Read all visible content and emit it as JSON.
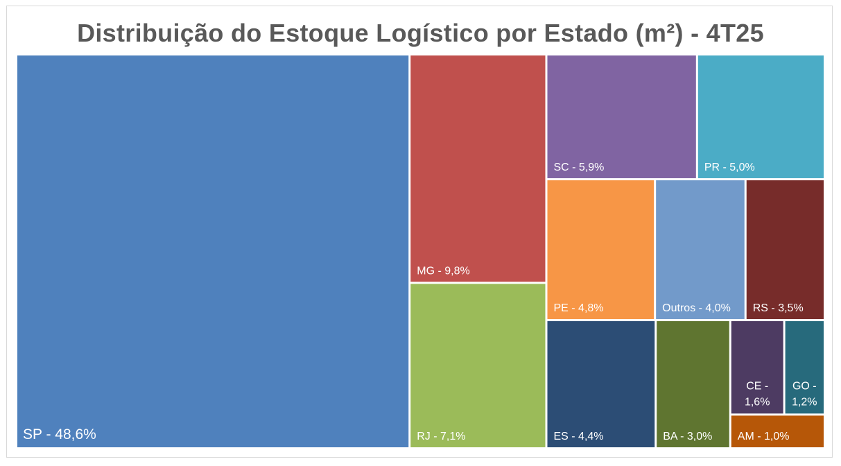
{
  "chart_data": {
    "type": "treemap",
    "title": "Distribuição do Estoque Logístico por Estado (m²) - 4T25",
    "items": [
      {
        "state": "SP",
        "value": 48.6,
        "label": "SP - 48,6%",
        "color": "#4f81bd"
      },
      {
        "state": "MG",
        "value": 9.8,
        "label": "MG - 9,8%",
        "color": "#c0504d"
      },
      {
        "state": "RJ",
        "value": 7.1,
        "label": "RJ - 7,1%",
        "color": "#9bbb59"
      },
      {
        "state": "SC",
        "value": 5.9,
        "label": "SC - 5,9%",
        "color": "#8064a2"
      },
      {
        "state": "PR",
        "value": 5.0,
        "label": "PR - 5,0%",
        "color": "#4bacc6"
      },
      {
        "state": "PE",
        "value": 4.8,
        "label": "PE - 4,8%",
        "color": "#f79646"
      },
      {
        "state": "Outros",
        "value": 4.0,
        "label": "Outros - 4,0%",
        "color": "#729aca"
      },
      {
        "state": "RS",
        "value": 3.5,
        "label": "RS - 3,5%",
        "color": "#772c2a"
      },
      {
        "state": "ES",
        "value": 4.4,
        "label": "ES - 4,4%",
        "color": "#2c4d75"
      },
      {
        "state": "BA",
        "value": 3.0,
        "label": "BA - 3,0%",
        "color": "#5f7530"
      },
      {
        "state": "CE",
        "value": 1.6,
        "label": "CE - 1,6%",
        "label_lines": [
          "CE -",
          "1,6%"
        ],
        "color": "#4d3b62"
      },
      {
        "state": "GO",
        "value": 1.2,
        "label": "GO - 1,2%",
        "label_lines": [
          "GO -",
          "1,2%"
        ],
        "color": "#276a7c"
      },
      {
        "state": "AM",
        "value": 1.0,
        "label": "AM - 1,0%",
        "color": "#b65708"
      }
    ]
  }
}
